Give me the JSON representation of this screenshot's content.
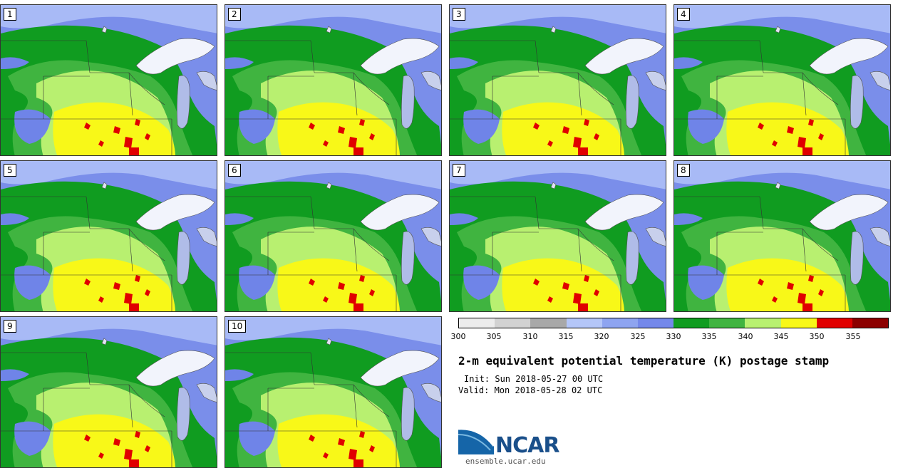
{
  "panels": [
    "1",
    "2",
    "3",
    "4",
    "5",
    "6",
    "7",
    "8",
    "9",
    "10"
  ],
  "colorbar": {
    "colors": [
      "#ececec",
      "#d2d2d2",
      "#a8a8a8",
      "#b4c6f8",
      "#8ea4f0",
      "#7488ea",
      "#109c20",
      "#40b440",
      "#b8f070",
      "#f8f818",
      "#e00000",
      "#8c0000"
    ],
    "ticks": [
      "300",
      "305",
      "310",
      "315",
      "320",
      "325",
      "330",
      "335",
      "340",
      "345",
      "350",
      "355"
    ]
  },
  "title": "2-m equivalent potential temperature (K) postage stamp",
  "init": "Init: Sun 2018-05-27 00 UTC",
  "valid": "Valid: Mon 2018-05-28 02 UTC",
  "logo_text": "NCAR",
  "site": "ensemble.ucar.edu"
}
